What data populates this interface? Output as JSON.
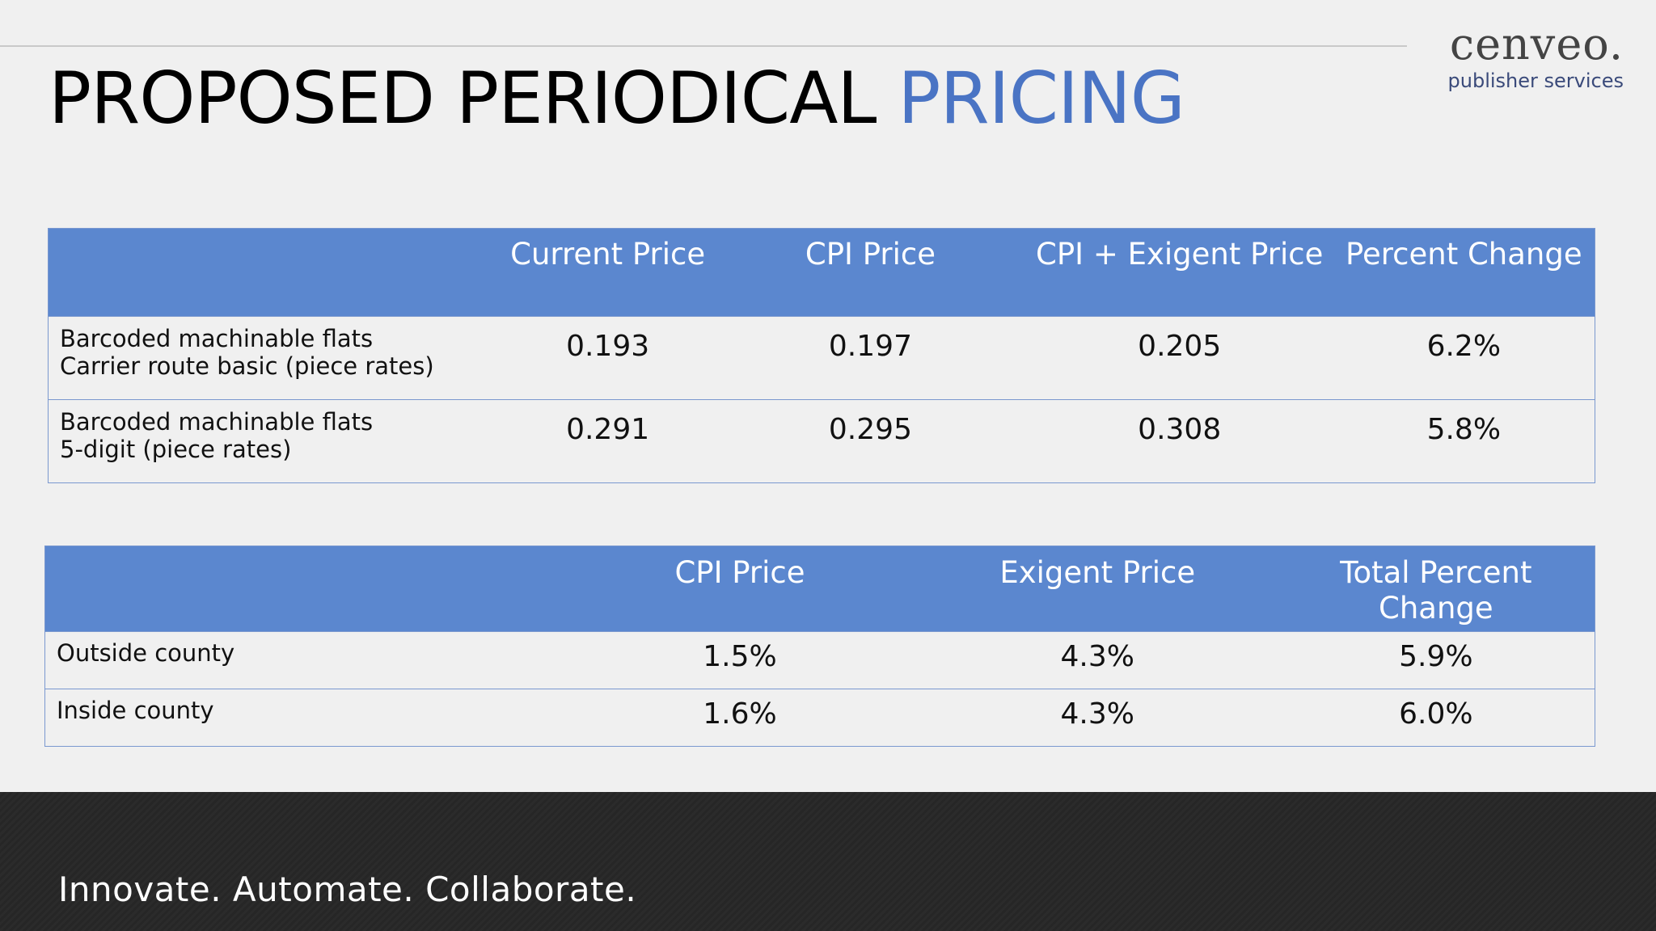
{
  "header": {
    "title_main": "PROPOSED PERIODICAL ",
    "title_accent": "PRICING"
  },
  "logo": {
    "wordmark": "cenveo.",
    "subtitle": "publisher services"
  },
  "table1": {
    "headers": [
      "",
      "Current Price",
      "CPI Price",
      "CPI + Exigent Price",
      "Percent Change"
    ],
    "rows": [
      {
        "label_line1": "Barcoded machinable flats",
        "label_line2": "Carrier route basic (piece rates)",
        "current": "0.193",
        "cpi": "0.197",
        "cpi_exigent": "0.205",
        "percent": "6.2%"
      },
      {
        "label_line1": "Barcoded machinable flats",
        "label_line2": "5-digit (piece rates)",
        "current": "0.291",
        "cpi": "0.295",
        "cpi_exigent": "0.308",
        "percent": "5.8%"
      }
    ]
  },
  "table2": {
    "headers": [
      "",
      "CPI Price",
      "Exigent Price",
      "Total Percent Change"
    ],
    "rows": [
      {
        "label": "Outside county",
        "cpi": "1.5%",
        "exigent": "4.3%",
        "total": "5.9%"
      },
      {
        "label": "Inside county",
        "cpi": "1.6%",
        "exigent": "4.3%",
        "total": "6.0%"
      }
    ]
  },
  "footer": {
    "tagline": "Innovate. Automate. Collaborate."
  },
  "colors": {
    "accent": "#4a74c4",
    "header_fill": "#5b87cf",
    "footer_bg": "#2b2b2b"
  }
}
